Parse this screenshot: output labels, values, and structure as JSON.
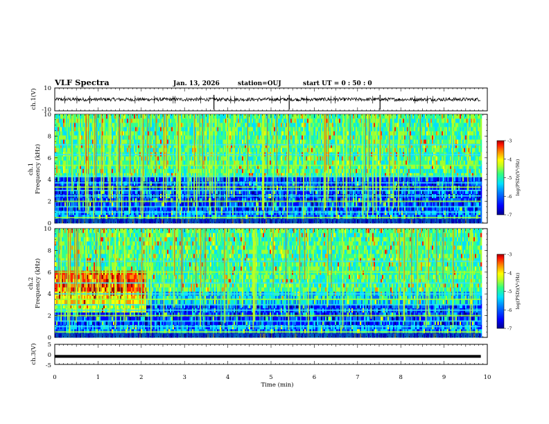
{
  "header": {
    "title": "VLF Spectra",
    "date": "Jan. 13, 2026",
    "station": "station=OUJ",
    "start": "start UT =  0 : 50 : 0"
  },
  "chart_data": [
    {
      "type": "line",
      "name": "ch1-waveform",
      "ylabel": "ch.1(V)",
      "ylim": [
        -10,
        10
      ],
      "yticks": [
        "10",
        "-10"
      ],
      "xlim": [
        0,
        10
      ],
      "description_values": {
        "baseline": 0,
        "typical_amplitude": 1.5,
        "spike_times_min": [
          3.68,
          5.42,
          7.52
        ]
      }
    },
    {
      "type": "heatmap",
      "name": "ch1-spectrogram",
      "ylabel": "ch.1\nFrequency (kHz)",
      "ylim": [
        0,
        10
      ],
      "yticks": [
        "0",
        "2",
        "4",
        "6",
        "8",
        "10"
      ],
      "xlim": [
        0,
        9.85
      ],
      "colorbar": {
        "label": "log(PSD)(V²/Hz)",
        "range": [
          -7,
          -3
        ],
        "ticks": [
          "-3",
          "-4",
          "-5",
          "-6",
          "-7"
        ]
      },
      "bands_khz": [
        0.5,
        1.0,
        1.5,
        2.0,
        2.5,
        3.0,
        3.3,
        3.7,
        4.3,
        5.3,
        6.3,
        7.2
      ]
    },
    {
      "type": "heatmap",
      "name": "ch2-spectrogram",
      "ylabel": "ch.2\nFrequency (kHz)",
      "ylim": [
        0,
        10
      ],
      "yticks": [
        "0",
        "2",
        "4",
        "6",
        "8",
        "10"
      ],
      "xlim": [
        0,
        9.85
      ],
      "colorbar": {
        "label": "log(PSD)(V²/Hz)",
        "range": [
          -7,
          -3
        ],
        "ticks": [
          "-3",
          "-4",
          "-5",
          "-6",
          "-7"
        ]
      },
      "bands_khz": [
        0.5,
        1.0,
        1.5,
        2.0,
        2.5,
        3.0,
        3.5,
        4.0,
        5.0,
        6.0,
        7.0
      ]
    },
    {
      "type": "line",
      "name": "ch3-waveform",
      "ylabel": "ch.3(V)",
      "ylim": [
        -5,
        5
      ],
      "yticks": [
        "5",
        "0",
        "-5"
      ],
      "xlim": [
        0,
        9.85
      ],
      "values": {
        "constant_level": -1
      }
    }
  ],
  "xaxis": {
    "label": "Time (min)",
    "ticks": [
      "0",
      "1",
      "2",
      "3",
      "4",
      "5",
      "6",
      "7",
      "8",
      "9",
      "10"
    ],
    "range": [
      0,
      10
    ]
  },
  "colors": {
    "colormap": [
      "#00008f",
      "#0000ff",
      "#0070ff",
      "#00e0ff",
      "#30ff90",
      "#a0ff30",
      "#ffff00",
      "#ff9000",
      "#ff2000",
      "#a00000"
    ]
  }
}
